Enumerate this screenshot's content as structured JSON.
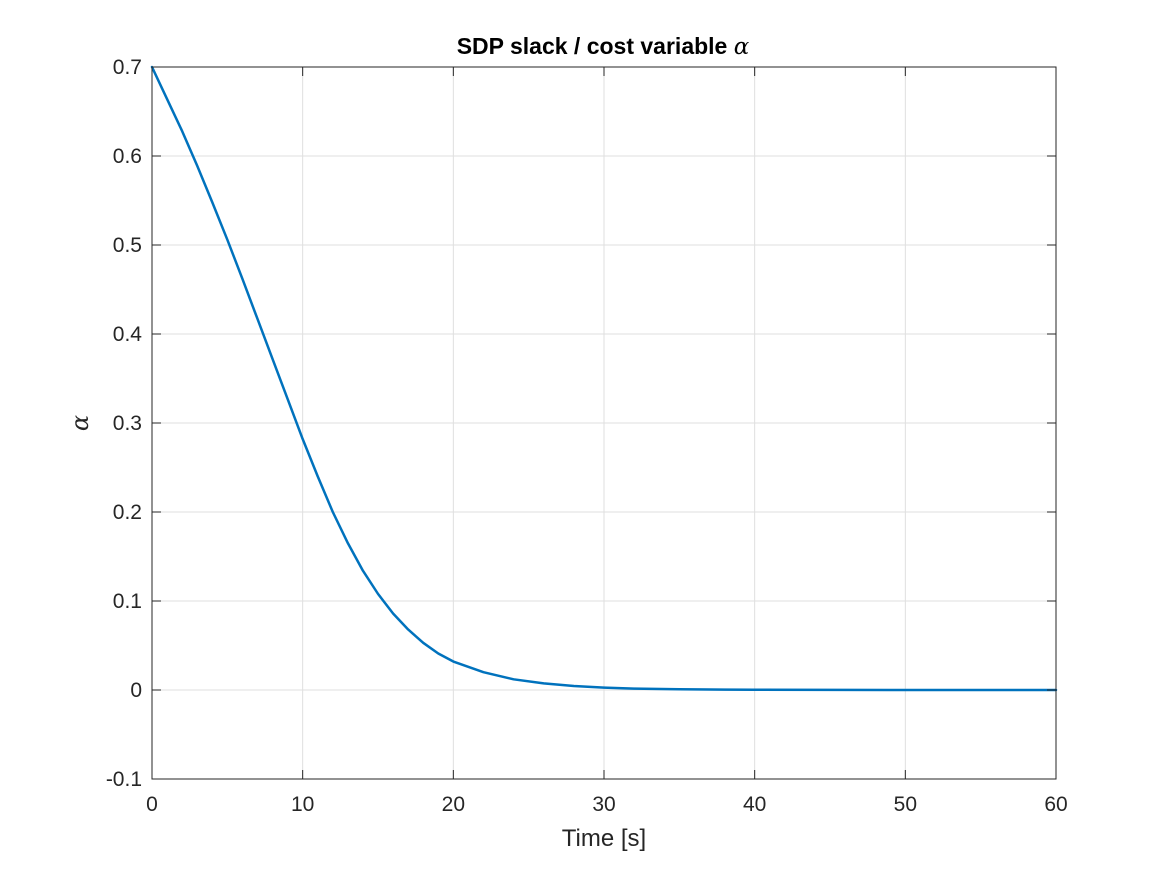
{
  "chart_data": {
    "type": "line",
    "title_prefix": "SDP slack / cost variable ",
    "title_symbol": "α",
    "xlabel": "Time [s]",
    "ylabel": "α",
    "xlim": [
      0,
      60
    ],
    "ylim": [
      -0.1,
      0.7
    ],
    "xticks": [
      0,
      10,
      20,
      30,
      40,
      50,
      60
    ],
    "yticks": [
      -0.1,
      0,
      0.1,
      0.2,
      0.3,
      0.4,
      0.5,
      0.6,
      0.7
    ],
    "xtick_labels": [
      "0",
      "10",
      "20",
      "30",
      "40",
      "50",
      "60"
    ],
    "ytick_labels": [
      "-0.1",
      "0",
      "0.1",
      "0.2",
      "0.3",
      "0.4",
      "0.5",
      "0.6",
      "0.7"
    ],
    "grid": true,
    "box": true,
    "series": [
      {
        "color": "#0072BD",
        "x": [
          0,
          1,
          2,
          3,
          4,
          5,
          6,
          7,
          8,
          9,
          10,
          11,
          12,
          13,
          14,
          15,
          16,
          17,
          18,
          19,
          20,
          22,
          24,
          26,
          28,
          30,
          32,
          35,
          38,
          40,
          45,
          50,
          55,
          60
        ],
        "y": [
          0.7,
          0.664,
          0.628,
          0.589,
          0.548,
          0.506,
          0.462,
          0.417,
          0.372,
          0.327,
          0.282,
          0.24,
          0.2,
          0.165,
          0.134,
          0.108,
          0.086,
          0.068,
          0.053,
          0.041,
          0.032,
          0.02,
          0.012,
          0.0075,
          0.0045,
          0.0027,
          0.0016,
          0.0008,
          0.0004,
          0.00025,
          0.0001,
          4e-05,
          2e-05,
          1e-05
        ]
      }
    ]
  }
}
